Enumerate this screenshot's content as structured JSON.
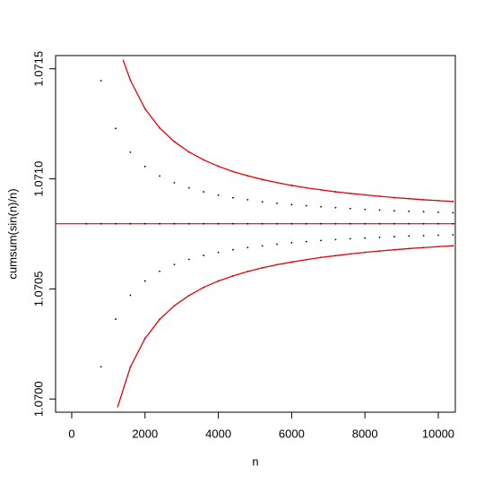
{
  "chart_data": {
    "type": "scatter",
    "x_label": "n",
    "y_label": "cumsum(sin(n)/n)",
    "xlim": [
      -440,
      10465
    ],
    "ylim": [
      1.06994,
      1.07156
    ],
    "xticks": [
      0,
      2000,
      4000,
      6000,
      8000,
      10000
    ],
    "yticks": [
      {
        "value": 1.07,
        "label": "1.0700"
      },
      {
        "value": 1.0705,
        "label": "1.0705"
      },
      {
        "value": 1.071,
        "label": "1.0710"
      },
      {
        "value": 1.0715,
        "label": "1.0715"
      }
    ],
    "reference_line": 1.070796,
    "reference_color": "#e8000b",
    "series": [
      {
        "mode": "points",
        "color": "#000000",
        "x": [
          1600,
          2000,
          2400,
          2800,
          3200,
          3600,
          4000,
          4400,
          4800,
          5200,
          5600,
          6000,
          6400,
          6800,
          7200,
          7600,
          8000,
          8400,
          8800,
          9200,
          9600,
          10000,
          10400
        ],
        "values": [
          1.070145,
          1.070275,
          1.070362,
          1.070424,
          1.07047,
          1.070507,
          1.070536,
          1.070559,
          1.070579,
          1.070596,
          1.07061,
          1.070622,
          1.070633,
          1.070643,
          1.070651,
          1.070659,
          1.070666,
          1.070672,
          1.070678,
          1.070683,
          1.070688,
          1.070692,
          1.070696
        ]
      },
      {
        "mode": "points",
        "color": "#000000",
        "x": [
          1600,
          2000,
          2400,
          2800,
          3200,
          3600,
          4000,
          4400,
          4800,
          5200,
          5600,
          6000,
          6400,
          6800,
          7200,
          7600,
          8000,
          8400,
          8800,
          9200,
          9600,
          10000,
          10400
        ],
        "values": [
          1.071448,
          1.071318,
          1.071231,
          1.071169,
          1.071122,
          1.071086,
          1.071057,
          1.071033,
          1.071014,
          1.070997,
          1.070983,
          1.07097,
          1.070959,
          1.07095,
          1.070941,
          1.070934,
          1.070927,
          1.070921,
          1.070915,
          1.07091,
          1.070905,
          1.070901,
          1.070897
        ]
      },
      {
        "mode": "points",
        "color": "#000000",
        "x": [
          800,
          1200,
          1600,
          2000,
          2400,
          2800,
          3200,
          3600,
          4000,
          4400,
          4800,
          5200,
          5600,
          6000,
          6400,
          6800,
          7200,
          7600,
          8000,
          8400,
          8800,
          9200,
          9600,
          10000,
          10400
        ],
        "values": [
          1.070146,
          1.070363,
          1.070471,
          1.070536,
          1.07058,
          1.070611,
          1.070634,
          1.070652,
          1.070666,
          1.070678,
          1.070688,
          1.070696,
          1.070703,
          1.07071,
          1.070715,
          1.07072,
          1.070724,
          1.070728,
          1.070731,
          1.070734,
          1.070737,
          1.07074,
          1.070742,
          1.070744,
          1.070746
        ]
      },
      {
        "mode": "points",
        "color": "#000000",
        "x": [
          800,
          1200,
          1600,
          2000,
          2400,
          2800,
          3200,
          3600,
          4000,
          4400,
          4800,
          5200,
          5600,
          6000,
          6400,
          6800,
          7200,
          7600,
          8000,
          8400,
          8800,
          9200,
          9600,
          10000,
          10400
        ],
        "values": [
          1.071446,
          1.071229,
          1.071121,
          1.071056,
          1.071013,
          1.070982,
          1.070959,
          1.070941,
          1.070926,
          1.070914,
          1.070905,
          1.070896,
          1.070889,
          1.070883,
          1.070878,
          1.070873,
          1.070869,
          1.070865,
          1.070861,
          1.070858,
          1.070855,
          1.070853,
          1.070851,
          1.070848,
          1.070846
        ]
      },
      {
        "mode": "points",
        "color": "#000000",
        "x": [
          400,
          800,
          1200,
          1600,
          2000,
          2400,
          2800,
          3200,
          3600,
          4000,
          4400,
          4800,
          5200,
          5600,
          6000,
          6400,
          6800,
          7200,
          7600,
          8000,
          8400,
          8800,
          9200,
          9600,
          10000,
          10400
        ],
        "values": [
          1.070796,
          1.070796,
          1.070796,
          1.070796,
          1.070796,
          1.070796,
          1.070796,
          1.070796,
          1.070796,
          1.070796,
          1.070796,
          1.070796,
          1.070796,
          1.070796,
          1.070796,
          1.070796,
          1.070796,
          1.070796,
          1.070796,
          1.070796,
          1.070796,
          1.070796,
          1.070796,
          1.070796,
          1.070796,
          1.070796
        ]
      },
      {
        "mode": "line",
        "color": "#e8000b",
        "x": [
          1250,
          1600,
          2000,
          2400,
          2800,
          3200,
          3600,
          4000,
          4400,
          4800,
          5200,
          5600,
          6000,
          6400,
          6800,
          7200,
          7600,
          8000,
          8400,
          8800,
          9200,
          9600,
          10000,
          10400
        ],
        "values": [
          1.069962,
          1.070145,
          1.070275,
          1.070362,
          1.070424,
          1.07047,
          1.070507,
          1.070536,
          1.070559,
          1.070579,
          1.070596,
          1.07061,
          1.070622,
          1.070633,
          1.070643,
          1.070651,
          1.070659,
          1.070666,
          1.070672,
          1.070678,
          1.070683,
          1.070688,
          1.070692,
          1.070696
        ]
      },
      {
        "mode": "line",
        "color": "#e8000b",
        "x": [
          1400,
          1600,
          2000,
          2400,
          2800,
          3200,
          3600,
          4000,
          4400,
          4800,
          5200,
          5600,
          6000,
          6400,
          6800,
          7200,
          7600,
          8000,
          8400,
          8800,
          9200,
          9600,
          10000,
          10400
        ],
        "values": [
          1.071541,
          1.071448,
          1.071318,
          1.071231,
          1.071169,
          1.071122,
          1.071086,
          1.071057,
          1.071033,
          1.071014,
          1.070997,
          1.070983,
          1.07097,
          1.070959,
          1.07095,
          1.070941,
          1.070934,
          1.070927,
          1.070921,
          1.070915,
          1.07091,
          1.070905,
          1.070901,
          1.070897
        ]
      }
    ]
  }
}
